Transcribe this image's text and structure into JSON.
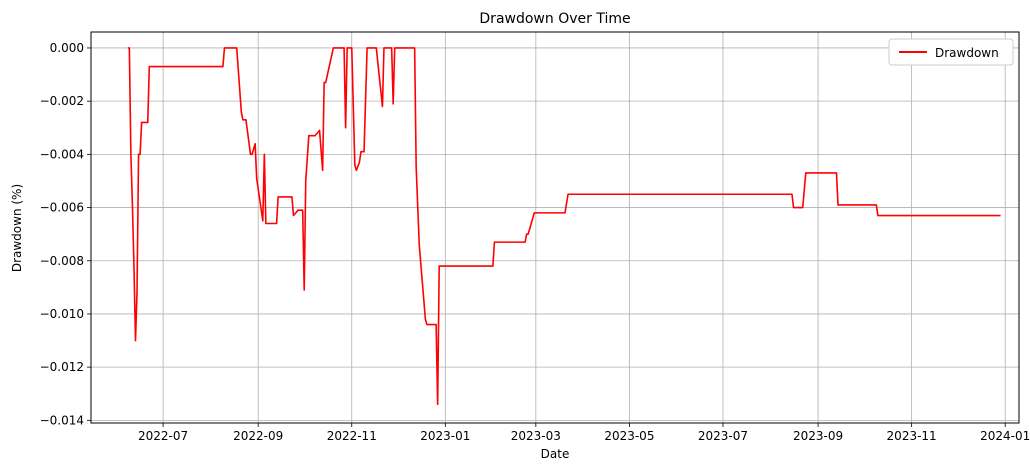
{
  "chart_data": {
    "type": "line",
    "title": "Drawdown Over Time",
    "xlabel": "Date",
    "ylabel": "Drawdown (%)",
    "xlim": [
      "2022-05-15",
      "2024-01-10"
    ],
    "ylim": [
      -0.0141,
      0.0006
    ],
    "grid": true,
    "legend_position": "top-right",
    "x_ticks": [
      "2022-07-01",
      "2022-09-01",
      "2022-11-01",
      "2023-01-01",
      "2023-03-01",
      "2023-05-01",
      "2023-07-01",
      "2023-09-01",
      "2023-11-01",
      "2024-01-01"
    ],
    "x_tick_labels": [
      "2022-07",
      "2022-09",
      "2022-11",
      "2023-01",
      "2023-03",
      "2023-05",
      "2023-07",
      "2023-09",
      "2023-11",
      "2024-01"
    ],
    "y_ticks": [
      0.0,
      -0.002,
      -0.004,
      -0.006,
      -0.008,
      -0.01,
      -0.012,
      -0.014
    ],
    "y_tick_labels": [
      "0.000",
      "−0.002",
      "−0.004",
      "−0.006",
      "−0.008",
      "−0.010",
      "−0.012",
      "−0.014"
    ],
    "series": [
      {
        "name": "Drawdown",
        "color": "#ff0000",
        "points": [
          [
            "2022-06-08",
            0.0
          ],
          [
            "2022-06-09",
            0.0
          ],
          [
            "2022-06-10",
            -0.004
          ],
          [
            "2022-06-11",
            -0.0059
          ],
          [
            "2022-06-12",
            -0.0082
          ],
          [
            "2022-06-13",
            -0.011
          ],
          [
            "2022-06-14",
            -0.0092
          ],
          [
            "2022-06-15",
            -0.004
          ],
          [
            "2022-06-16",
            -0.004
          ],
          [
            "2022-06-17",
            -0.0028
          ],
          [
            "2022-06-21",
            -0.0028
          ],
          [
            "2022-06-22",
            -0.0007
          ],
          [
            "2022-08-09",
            -0.0007
          ],
          [
            "2022-08-10",
            0.0
          ],
          [
            "2022-08-18",
            0.0
          ],
          [
            "2022-08-21",
            -0.0024
          ],
          [
            "2022-08-22",
            -0.0027
          ],
          [
            "2022-08-24",
            -0.0027
          ],
          [
            "2022-08-27",
            -0.004
          ],
          [
            "2022-08-28",
            -0.004
          ],
          [
            "2022-08-30",
            -0.0036
          ],
          [
            "2022-08-31",
            -0.0049
          ],
          [
            "2022-09-04",
            -0.0065
          ],
          [
            "2022-09-05",
            -0.004
          ],
          [
            "2022-09-06",
            -0.0066
          ],
          [
            "2022-09-13",
            -0.0066
          ],
          [
            "2022-09-14",
            -0.0056
          ],
          [
            "2022-09-23",
            -0.0056
          ],
          [
            "2022-09-24",
            -0.0063
          ],
          [
            "2022-09-27",
            -0.0061
          ],
          [
            "2022-09-30",
            -0.0061
          ],
          [
            "2022-10-01",
            -0.0091
          ],
          [
            "2022-10-02",
            -0.005
          ],
          [
            "2022-10-04",
            -0.0033
          ],
          [
            "2022-10-08",
            -0.0033
          ],
          [
            "2022-10-11",
            -0.0031
          ],
          [
            "2022-10-13",
            -0.0046
          ],
          [
            "2022-10-14",
            -0.0013
          ],
          [
            "2022-10-15",
            -0.0013
          ],
          [
            "2022-10-20",
            0.0
          ],
          [
            "2022-10-27",
            0.0
          ],
          [
            "2022-10-28",
            -0.003
          ],
          [
            "2022-10-29",
            0.0
          ],
          [
            "2022-11-01",
            0.0
          ],
          [
            "2022-11-03",
            -0.0044
          ],
          [
            "2022-11-04",
            -0.0046
          ],
          [
            "2022-11-06",
            -0.0043
          ],
          [
            "2022-11-07",
            -0.0039
          ],
          [
            "2022-11-09",
            -0.0039
          ],
          [
            "2022-11-11",
            0.0
          ],
          [
            "2022-11-17",
            0.0
          ],
          [
            "2022-11-21",
            -0.0022
          ],
          [
            "2022-11-22",
            0.0
          ],
          [
            "2022-11-27",
            0.0
          ],
          [
            "2022-11-28",
            -0.0021
          ],
          [
            "2022-11-29",
            0.0
          ],
          [
            "2022-12-12",
            0.0
          ],
          [
            "2022-12-13",
            -0.0045
          ],
          [
            "2022-12-15",
            -0.0074
          ],
          [
            "2022-12-19",
            -0.0102
          ],
          [
            "2022-12-20",
            -0.0104
          ],
          [
            "2022-12-26",
            -0.0104
          ],
          [
            "2022-12-27",
            -0.0134
          ],
          [
            "2022-12-28",
            -0.0082
          ],
          [
            "2023-02-01",
            -0.0082
          ],
          [
            "2023-02-02",
            -0.0073
          ],
          [
            "2023-02-22",
            -0.0073
          ],
          [
            "2023-02-23",
            -0.007
          ],
          [
            "2023-02-24",
            -0.007
          ],
          [
            "2023-02-28",
            -0.0062
          ],
          [
            "2023-03-20",
            -0.0062
          ],
          [
            "2023-03-22",
            -0.0055
          ],
          [
            "2023-06-01",
            -0.0055
          ],
          [
            "2023-06-02",
            -0.0055
          ],
          [
            "2023-08-15",
            -0.0055
          ],
          [
            "2023-08-16",
            -0.006
          ],
          [
            "2023-08-22",
            -0.006
          ],
          [
            "2023-08-24",
            -0.0047
          ],
          [
            "2023-09-13",
            -0.0047
          ],
          [
            "2023-09-14",
            -0.0059
          ],
          [
            "2023-10-09",
            -0.0059
          ],
          [
            "2023-10-10",
            -0.0063
          ],
          [
            "2023-12-29",
            -0.0063
          ]
        ]
      }
    ]
  }
}
